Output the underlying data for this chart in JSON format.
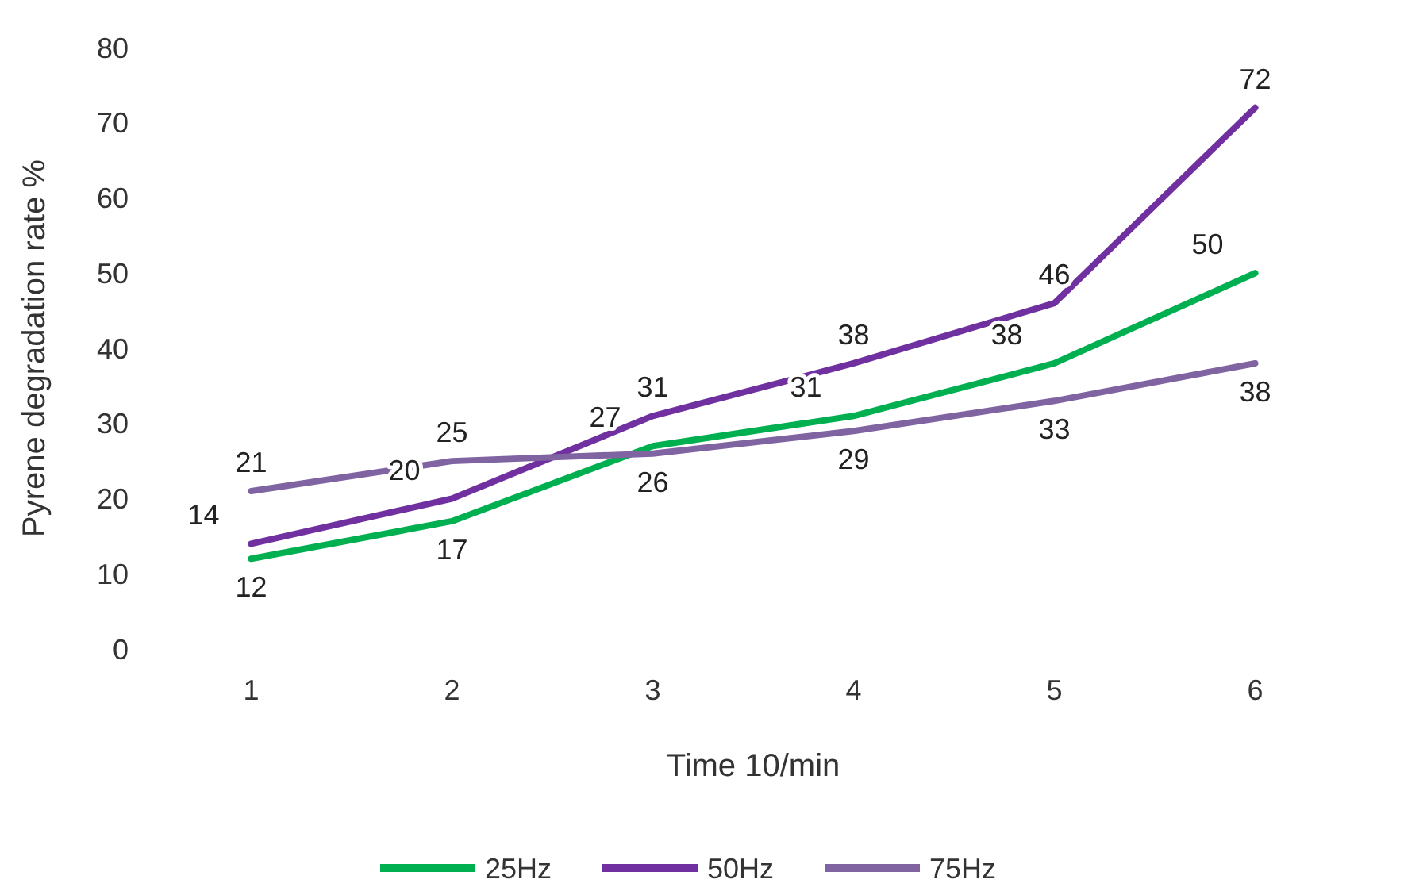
{
  "chart_data": {
    "type": "line",
    "xlabel": "Time 10/min",
    "ylabel": "Pyrene degradation rate %",
    "categories": [
      "1",
      "2",
      "3",
      "4",
      "5",
      "6"
    ],
    "series": [
      {
        "name": "25Hz",
        "color": "#00b050",
        "values": [
          12,
          17,
          27,
          31,
          38,
          50
        ]
      },
      {
        "name": "50Hz",
        "color": "#7030a0",
        "values": [
          14,
          20,
          31,
          38,
          46,
          72
        ]
      },
      {
        "name": "75Hz",
        "color": "#8064a2",
        "values": [
          21,
          25,
          26,
          29,
          33,
          38
        ]
      }
    ],
    "ylim": [
      0,
      80
    ],
    "yticks": [
      0,
      10,
      20,
      30,
      40,
      50,
      60,
      70,
      80
    ],
    "grid": false,
    "legend": "bottom",
    "data_labels": true,
    "marker": "none",
    "line_style": "solid"
  }
}
